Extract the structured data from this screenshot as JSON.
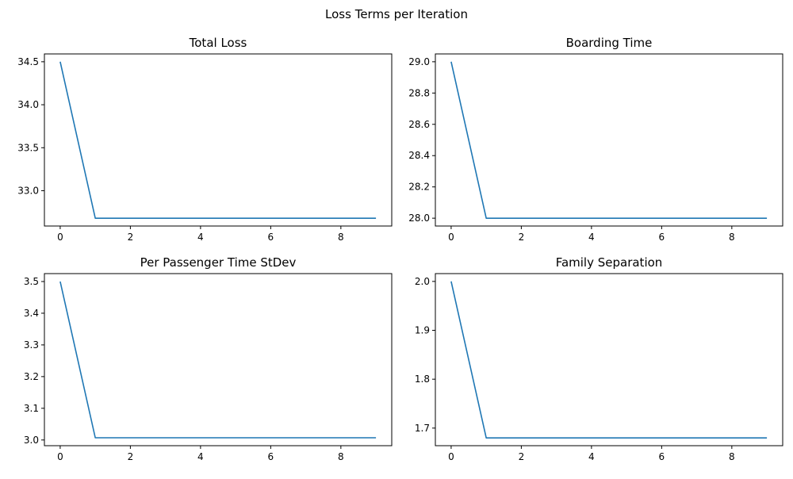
{
  "figure": {
    "suptitle": "Loss Terms per Iteration"
  },
  "chart_data": [
    {
      "type": "line",
      "title": "Total Loss",
      "xlabel": "",
      "ylabel": "",
      "x": [
        0,
        1,
        2,
        3,
        4,
        5,
        6,
        7,
        8,
        9
      ],
      "series": [
        {
          "name": "Total Loss",
          "color": "#1f77b4",
          "values": [
            34.5,
            32.68,
            32.68,
            32.68,
            32.68,
            32.68,
            32.68,
            32.68,
            32.68,
            32.68
          ]
        }
      ],
      "xlim": [
        -0.45,
        9.45
      ],
      "ylim": [
        32.589,
        34.591
      ],
      "xticks": [
        0,
        2,
        4,
        6,
        8
      ],
      "xtick_labels": [
        "0",
        "2",
        "4",
        "6",
        "8"
      ],
      "yticks": [
        33.0,
        33.5,
        34.0,
        34.5
      ],
      "ytick_labels": [
        "33.0",
        "33.5",
        "34.0",
        "34.5"
      ]
    },
    {
      "type": "line",
      "title": "Boarding Time",
      "xlabel": "",
      "ylabel": "",
      "x": [
        0,
        1,
        2,
        3,
        4,
        5,
        6,
        7,
        8,
        9
      ],
      "series": [
        {
          "name": "Boarding Time",
          "color": "#1f77b4",
          "values": [
            29.0,
            28.0,
            28.0,
            28.0,
            28.0,
            28.0,
            28.0,
            28.0,
            28.0,
            28.0
          ]
        }
      ],
      "xlim": [
        -0.45,
        9.45
      ],
      "ylim": [
        27.95,
        29.05
      ],
      "xticks": [
        0,
        2,
        4,
        6,
        8
      ],
      "xtick_labels": [
        "0",
        "2",
        "4",
        "6",
        "8"
      ],
      "yticks": [
        28.0,
        28.2,
        28.4,
        28.6,
        28.8,
        29.0
      ],
      "ytick_labels": [
        "28.0",
        "28.2",
        "28.4",
        "28.6",
        "28.8",
        "29.0"
      ]
    },
    {
      "type": "line",
      "title": "Per Passenger Time StDev",
      "xlabel": "",
      "ylabel": "",
      "x": [
        0,
        1,
        2,
        3,
        4,
        5,
        6,
        7,
        8,
        9
      ],
      "series": [
        {
          "name": "Per Passenger Time StDev",
          "color": "#1f77b4",
          "values": [
            3.5,
            3.007,
            3.007,
            3.007,
            3.007,
            3.007,
            3.007,
            3.007,
            3.007,
            3.007
          ]
        }
      ],
      "xlim": [
        -0.45,
        9.45
      ],
      "ylim": [
        2.982,
        3.525
      ],
      "xticks": [
        0,
        2,
        4,
        6,
        8
      ],
      "xtick_labels": [
        "0",
        "2",
        "4",
        "6",
        "8"
      ],
      "yticks": [
        3.0,
        3.1,
        3.2,
        3.3,
        3.4,
        3.5
      ],
      "ytick_labels": [
        "3.0",
        "3.1",
        "3.2",
        "3.3",
        "3.4",
        "3.5"
      ]
    },
    {
      "type": "line",
      "title": "Family Separation",
      "xlabel": "",
      "ylabel": "",
      "x": [
        0,
        1,
        2,
        3,
        4,
        5,
        6,
        7,
        8,
        9
      ],
      "series": [
        {
          "name": "Family Separation",
          "color": "#1f77b4",
          "values": [
            2.0,
            1.68,
            1.68,
            1.68,
            1.68,
            1.68,
            1.68,
            1.68,
            1.68,
            1.68
          ]
        }
      ],
      "xlim": [
        -0.45,
        9.45
      ],
      "ylim": [
        1.664,
        2.016
      ],
      "xticks": [
        0,
        2,
        4,
        6,
        8
      ],
      "xtick_labels": [
        "0",
        "2",
        "4",
        "6",
        "8"
      ],
      "yticks": [
        1.7,
        1.8,
        1.9,
        2.0
      ],
      "ytick_labels": [
        "1.7",
        "1.8",
        "1.9",
        "2.0"
      ]
    }
  ]
}
